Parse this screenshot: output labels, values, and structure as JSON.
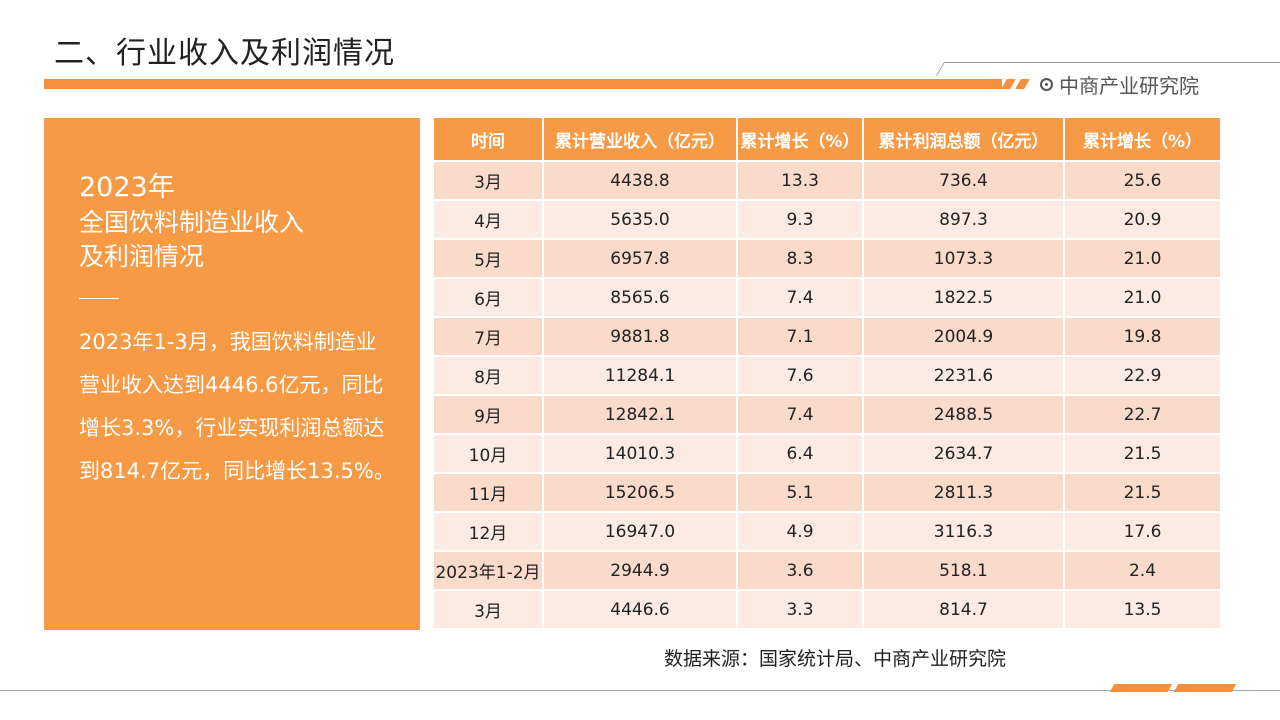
{
  "header": {
    "title": "二、行业收入及利润情况",
    "brand": "中商产业研究院"
  },
  "panel": {
    "year": "2023年",
    "heading_line1": "全国饮料制造业收入",
    "heading_line2": "及利润情况",
    "body": "2023年1-3月，我国饮料制造业营业收入达到4446.6亿元，同比增长3.3%，行业实现利润总额达到814.7亿元，同比增长13.5%。"
  },
  "table": {
    "headers": [
      "时间",
      "累计营业收入（亿元）",
      "累计增长（%）",
      "累计利润总额（亿元）",
      "累计增长（%）"
    ],
    "rows": [
      [
        "3月",
        "4438.8",
        "13.3",
        "736.4",
        "25.6"
      ],
      [
        "4月",
        "5635.0",
        "9.3",
        "897.3",
        "20.9"
      ],
      [
        "5月",
        "6957.8",
        "8.3",
        "1073.3",
        "21.0"
      ],
      [
        "6月",
        "8565.6",
        "7.4",
        "1822.5",
        "21.0"
      ],
      [
        "7月",
        "9881.8",
        "7.1",
        "2004.9",
        "19.8"
      ],
      [
        "8月",
        "11284.1",
        "7.6",
        "2231.6",
        "22.9"
      ],
      [
        "9月",
        "12842.1",
        "7.4",
        "2488.5",
        "22.7"
      ],
      [
        "10月",
        "14010.3",
        "6.4",
        "2634.7",
        "21.5"
      ],
      [
        "11月",
        "15206.5",
        "5.1",
        "2811.3",
        "21.5"
      ],
      [
        "12月",
        "16947.0",
        "4.9",
        "3116.3",
        "17.6"
      ],
      [
        "2023年1-2月",
        "2944.9",
        "3.6",
        "518.1",
        "2.4"
      ],
      [
        "3月",
        "4446.6",
        "3.3",
        "814.7",
        "13.5"
      ]
    ]
  },
  "source": "数据来源：国家统计局、中商产业研究院",
  "colors": {
    "accent": "#f79a45",
    "row_odd": "#fadacb",
    "row_even": "#fcebe2"
  }
}
